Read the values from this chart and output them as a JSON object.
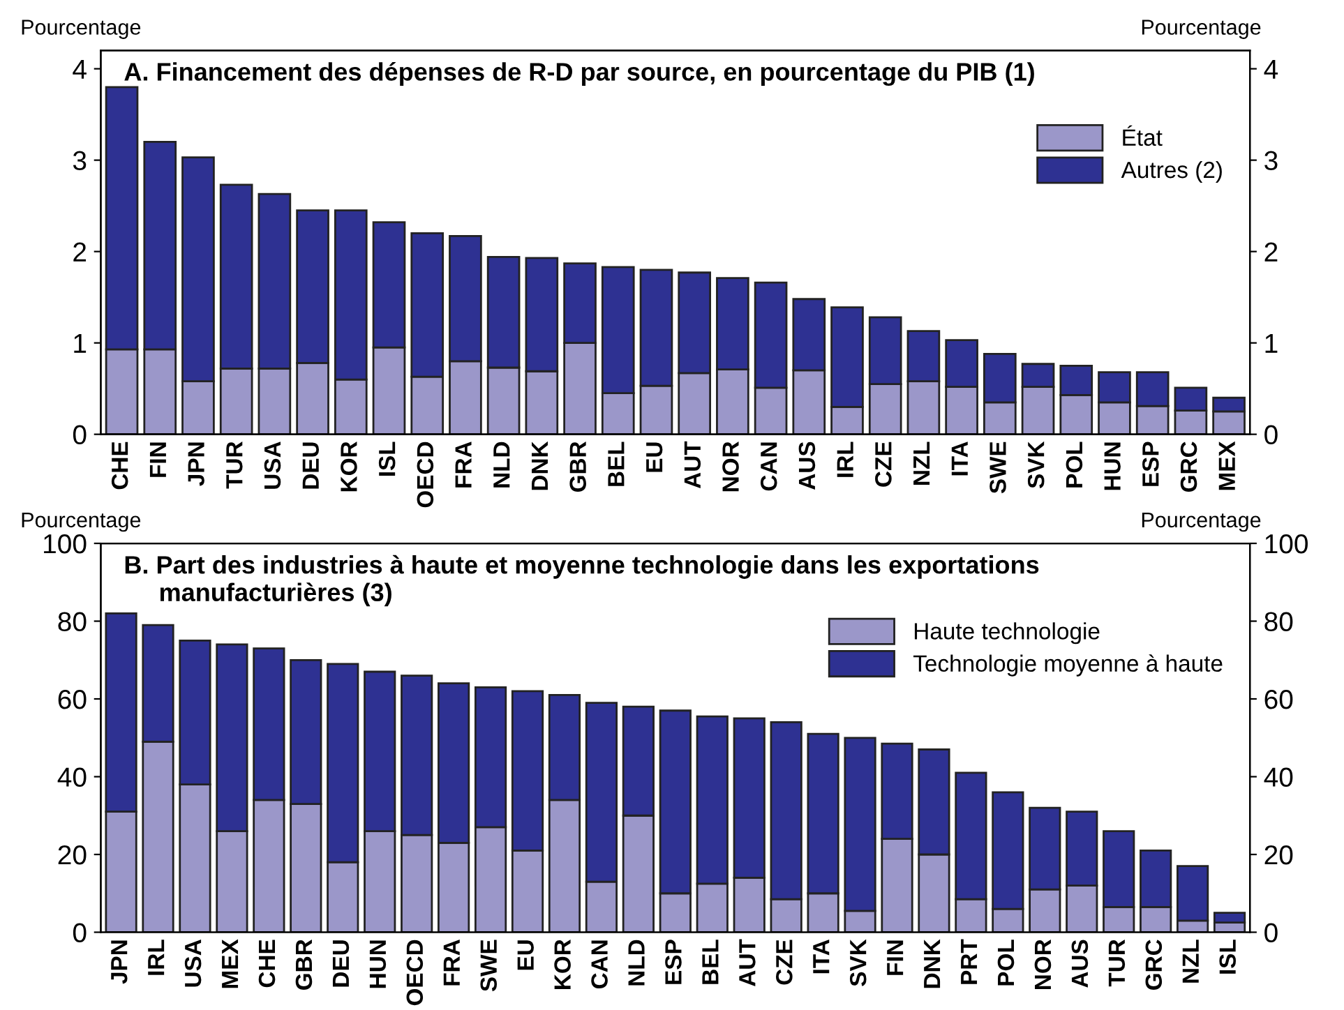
{
  "chart_data": [
    {
      "type": "bar",
      "stacked": true,
      "title": "A. Financement des dépenses de R-D par source, en pourcentage du PIB (1)",
      "ylabel": "Pourcentage",
      "y2label": "Pourcentage",
      "categories": [
        "CHE",
        "FIN",
        "JPN",
        "TUR",
        "USA",
        "DEU",
        "KOR",
        "ISL",
        "OECD",
        "FRA",
        "NLD",
        "DNK",
        "GBR",
        "BEL",
        "EU",
        "AUT",
        "NOR",
        "CAN",
        "AUS",
        "IRL",
        "CZE",
        "NZL",
        "ITA",
        "SWE",
        "SVK",
        "POL",
        "HUN",
        "ESP",
        "GRC",
        "MEX"
      ],
      "series": [
        {
          "name": "État",
          "color": "#9b97c9",
          "values": [
            0.93,
            0.93,
            0.58,
            0.72,
            0.72,
            0.78,
            0.6,
            0.95,
            0.63,
            0.8,
            0.73,
            0.69,
            1.0,
            0.45,
            0.53,
            0.67,
            0.71,
            0.51,
            0.7,
            0.3,
            0.55,
            0.58,
            0.52,
            0.35,
            0.52,
            0.43,
            0.35,
            0.31,
            0.26,
            0.25
          ]
        },
        {
          "name": "Autres (2)",
          "color": "#2e3192",
          "values": [
            2.87,
            2.27,
            2.45,
            2.01,
            1.91,
            1.67,
            1.85,
            1.37,
            1.57,
            1.37,
            1.21,
            1.24,
            0.87,
            1.38,
            1.27,
            1.1,
            1.0,
            1.15,
            0.78,
            1.09,
            0.73,
            0.55,
            0.51,
            0.53,
            0.25,
            0.32,
            0.33,
            0.37,
            0.25,
            0.15
          ]
        }
      ],
      "ylim": [
        0,
        4.2
      ],
      "yticks": [
        0,
        1,
        2,
        3,
        4
      ],
      "y2lim": [
        0,
        4.2
      ],
      "y2ticks": [
        0,
        1,
        2,
        3,
        4
      ],
      "grid": false,
      "legend": "top right"
    },
    {
      "type": "bar",
      "stacked": true,
      "title": "B. Part des industries à haute et moyenne technologie dans les exportations\n     manufacturières (3)",
      "ylabel": "Pourcentage",
      "y2label": "Pourcentage",
      "categories": [
        "JPN",
        "IRL",
        "USA",
        "MEX",
        "CHE",
        "GBR",
        "DEU",
        "HUN",
        "OECD",
        "FRA",
        "SWE",
        "EU",
        "KOR",
        "CAN",
        "NLD",
        "ESP",
        "BEL",
        "AUT",
        "CZE",
        "ITA",
        "SVK",
        "FIN",
        "DNK",
        "PRT",
        "POL",
        "NOR",
        "AUS",
        "TUR",
        "GRC",
        "NZL",
        "ISL"
      ],
      "series": [
        {
          "name": "Haute technologie",
          "color": "#9b97c9",
          "values": [
            31,
            49,
            38,
            26,
            34,
            33,
            18,
            26,
            25,
            23,
            27,
            21,
            34,
            13,
            30,
            10,
            12.5,
            14,
            8.5,
            10,
            5.5,
            24,
            20,
            8.5,
            6,
            11,
            12,
            6.5,
            6.5,
            3,
            2.5
          ]
        },
        {
          "name": "Technologie moyenne à haute",
          "color": "#2e3192",
          "values": [
            51,
            30,
            37,
            48,
            39,
            37,
            51,
            41,
            41,
            41,
            36,
            41,
            27,
            46,
            28,
            47,
            43,
            41,
            45.5,
            41,
            44.5,
            24.5,
            27,
            32.5,
            30,
            21,
            19,
            19.5,
            14.5,
            14,
            2.5
          ]
        }
      ],
      "ylim": [
        0,
        100
      ],
      "yticks": [
        0,
        20,
        40,
        60,
        80,
        100
      ],
      "y2lim": [
        0,
        100
      ],
      "y2ticks": [
        0,
        20,
        40,
        60,
        80,
        100
      ],
      "grid": false,
      "legend": "top right"
    }
  ]
}
